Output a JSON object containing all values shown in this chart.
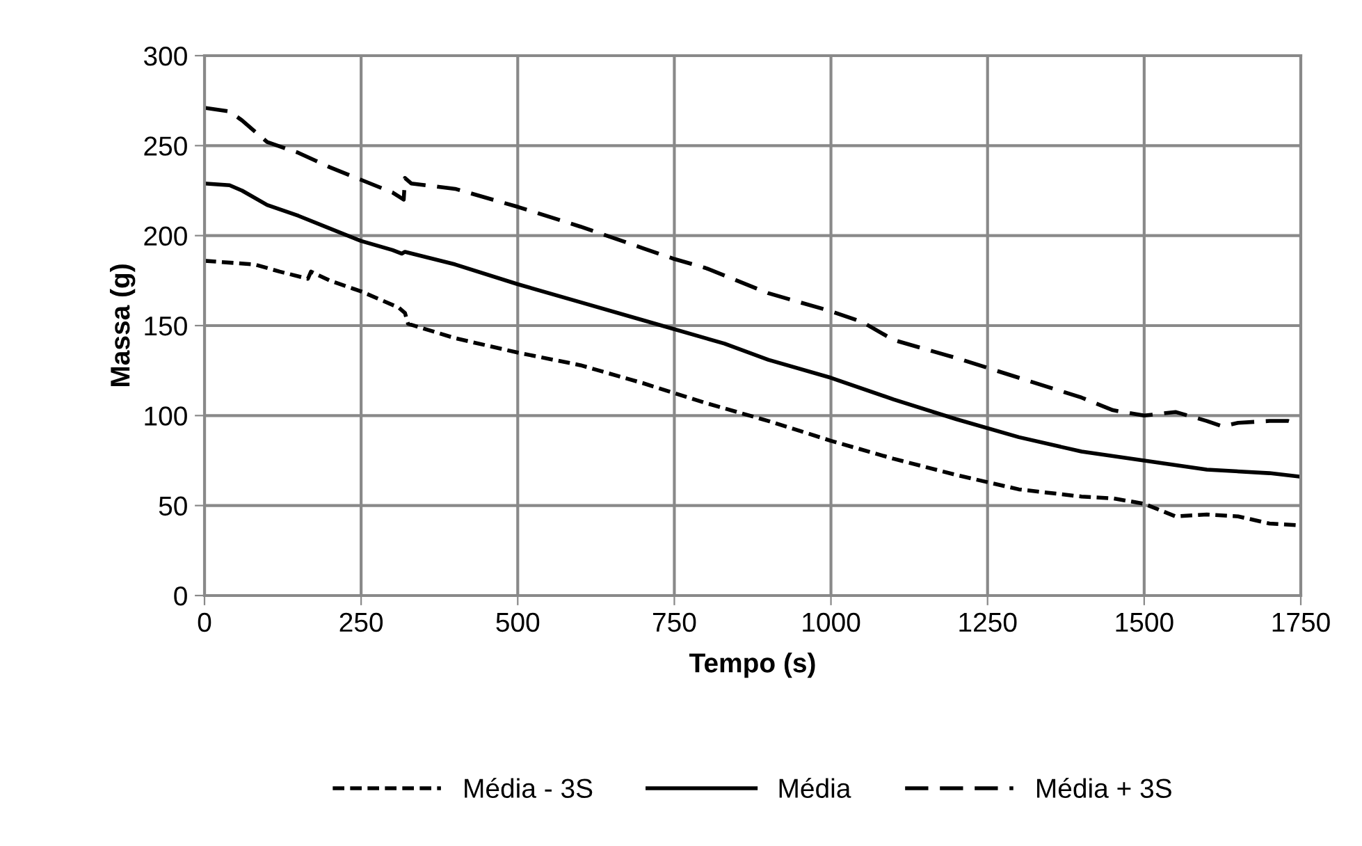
{
  "chart_data": {
    "type": "line",
    "xlabel": "Tempo (s)",
    "ylabel": "Massa (g)",
    "xlim": [
      0,
      1750
    ],
    "xticks": [
      0,
      250,
      500,
      750,
      1000,
      1250,
      1500,
      1750
    ],
    "ylim": [
      0,
      300
    ],
    "yticks": [
      0,
      50,
      100,
      150,
      200,
      250,
      300
    ],
    "grid": true,
    "legend": "bottom",
    "marker": "none",
    "series": [
      {
        "name": "Média - 3S",
        "color": "#000000",
        "line_style": "dotted",
        "x": [
          0,
          80,
          120,
          165,
          170,
          200,
          250,
          310,
          320,
          325,
          400,
          450,
          500,
          600,
          700,
          800,
          900,
          1000,
          1100,
          1200,
          1300,
          1400,
          1450,
          1500,
          1550,
          1600,
          1650,
          1700,
          1750
        ],
        "values": [
          186,
          184,
          180,
          176,
          180,
          175,
          169,
          160,
          157,
          151,
          143,
          139,
          135,
          128,
          118,
          107,
          97,
          86,
          76,
          67,
          59,
          55,
          54,
          51,
          44,
          45,
          44,
          40,
          39
        ]
      },
      {
        "name": "Média",
        "color": "#000000",
        "line_style": "solid",
        "x": [
          0,
          40,
          60,
          100,
          150,
          200,
          250,
          300,
          315,
          320,
          400,
          500,
          600,
          700,
          800,
          830,
          900,
          1000,
          1100,
          1200,
          1300,
          1400,
          1500,
          1600,
          1700,
          1750
        ],
        "values": [
          229,
          228,
          225,
          217,
          211,
          204,
          197,
          192,
          190,
          191,
          184,
          173,
          163,
          153,
          143,
          140,
          131,
          121,
          109,
          98,
          88,
          80,
          75,
          70,
          68,
          66
        ]
      },
      {
        "name": "Média + 3S",
        "color": "#000000",
        "line_style": "dashed",
        "x": [
          0,
          40,
          60,
          100,
          150,
          200,
          250,
          300,
          318,
          320,
          330,
          400,
          500,
          600,
          700,
          750,
          800,
          900,
          1000,
          1050,
          1100,
          1200,
          1300,
          1400,
          1450,
          1500,
          1550,
          1600,
          1625,
          1650,
          1700,
          1730,
          1750
        ],
        "values": [
          271,
          269,
          264,
          252,
          246,
          238,
          231,
          224,
          220,
          232,
          229,
          226,
          216,
          205,
          193,
          187,
          182,
          168,
          158,
          152,
          142,
          132,
          121,
          110,
          103,
          100,
          102,
          97,
          94,
          96,
          97,
          97,
          95
        ]
      }
    ]
  }
}
